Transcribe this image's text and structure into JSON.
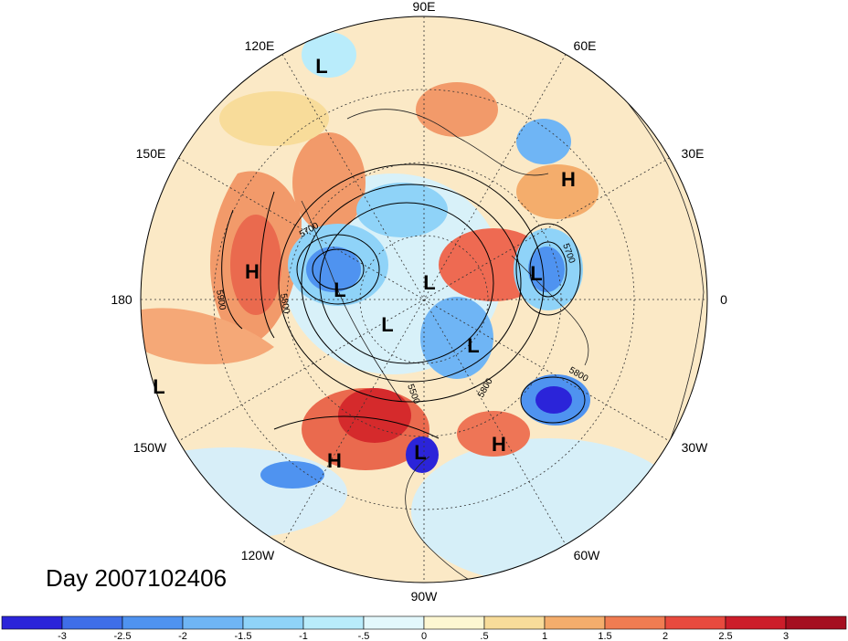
{
  "title": "Day 2007102406",
  "longitude_labels": [
    "90E",
    "60E",
    "30E",
    "0",
    "30W",
    "60W",
    "90W",
    "120W",
    "150W",
    "180",
    "150E",
    "120E"
  ],
  "systems": [
    {
      "type": "L",
      "id": "l-siberia-east"
    },
    {
      "type": "H",
      "id": "h-north-pacific"
    },
    {
      "type": "L",
      "id": "l-bering"
    },
    {
      "type": "L",
      "id": "l-pole"
    },
    {
      "type": "L",
      "id": "l-canada-arctic"
    },
    {
      "type": "L",
      "id": "l-greenland"
    },
    {
      "type": "L",
      "id": "l-scandinavia"
    },
    {
      "type": "H",
      "id": "h-west-russia"
    },
    {
      "type": "L",
      "id": "l-central-pacific"
    },
    {
      "type": "H",
      "id": "h-us-west"
    },
    {
      "type": "L",
      "id": "l-gulf-mexico"
    },
    {
      "type": "H",
      "id": "h-atlantic"
    }
  ],
  "contour_labels": [
    "5700",
    "5900",
    "5800",
    "5700",
    "5800",
    "5800",
    "5500"
  ],
  "colorbar": {
    "ticks": [
      "-3",
      "-2.5",
      "-2",
      "-1.5",
      "-1",
      "-.5",
      "0",
      ".5",
      "1",
      "1.5",
      "2",
      "2.5",
      "3"
    ],
    "colors": [
      "#2b24d9",
      "#3f6ee8",
      "#4f93f0",
      "#6fb5f5",
      "#8fd3f8",
      "#b9ecfb",
      "#e3f8fc",
      "#fdf7d2",
      "#f8dc9a",
      "#f4ad6c",
      "#f07c52",
      "#e84a3e",
      "#cc1d2a",
      "#a50f20"
    ]
  }
}
